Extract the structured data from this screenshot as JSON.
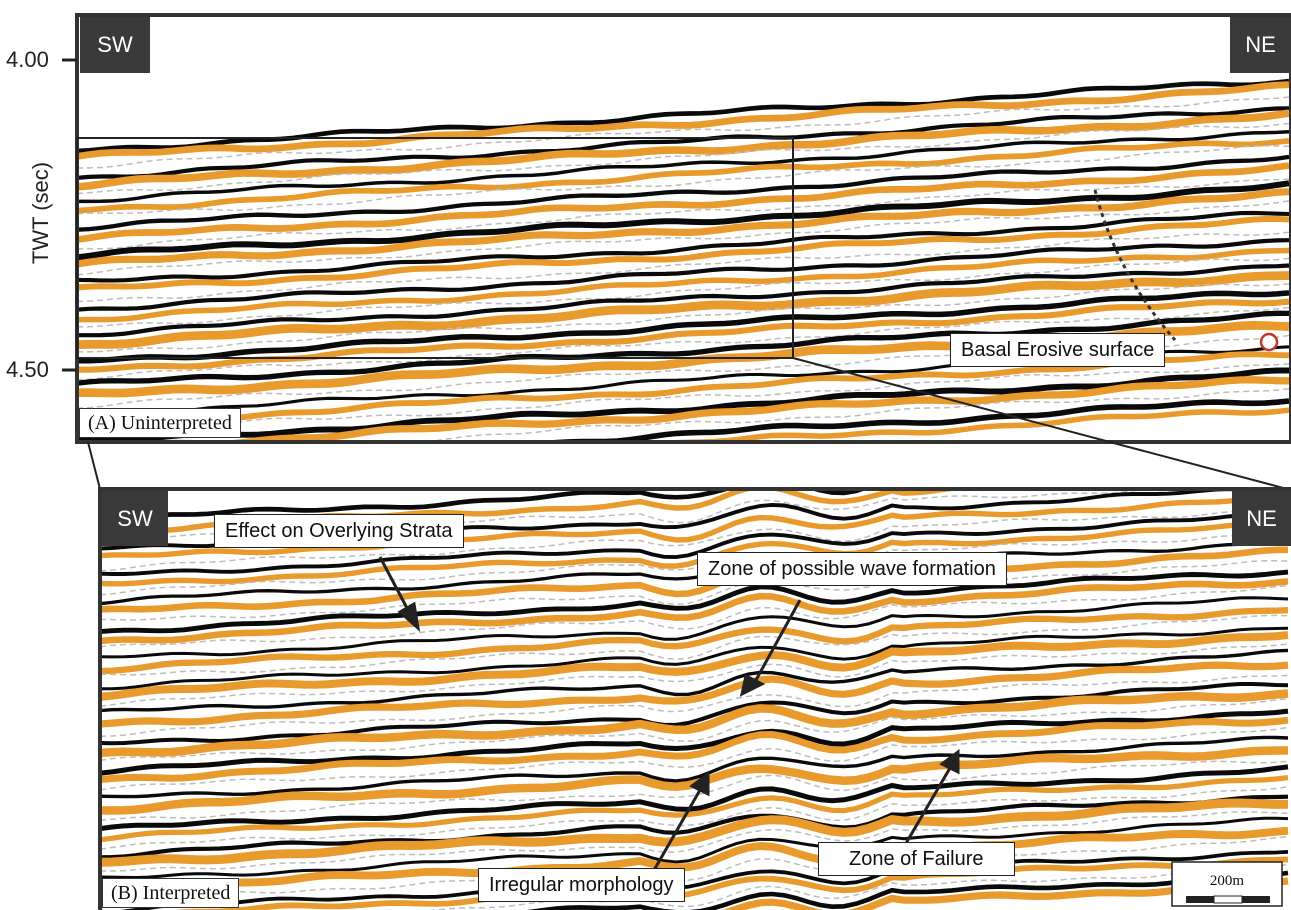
{
  "axis": {
    "title": "TWT (sec)",
    "ticks": [
      "4.00",
      "4.50"
    ]
  },
  "panel_a": {
    "label": "(A) Uninterpreted",
    "left_tag": "SW",
    "right_tag": "NE",
    "annotation": "Basal Erosive surface"
  },
  "panel_b": {
    "label": "(B) Interpreted",
    "left_tag": "SW",
    "right_tag": "NE",
    "annotations": {
      "overlying": "Effect on Overlying Strata",
      "wave": "Zone of possible wave formation",
      "morphology": "Irregular morphology",
      "failure": "Zone of Failure"
    },
    "scale": "200m"
  },
  "colors": {
    "reflector_dark": "#0a0a0a",
    "reflector_amber": "#e89a2c",
    "tag_bg": "#3a3a3a"
  }
}
